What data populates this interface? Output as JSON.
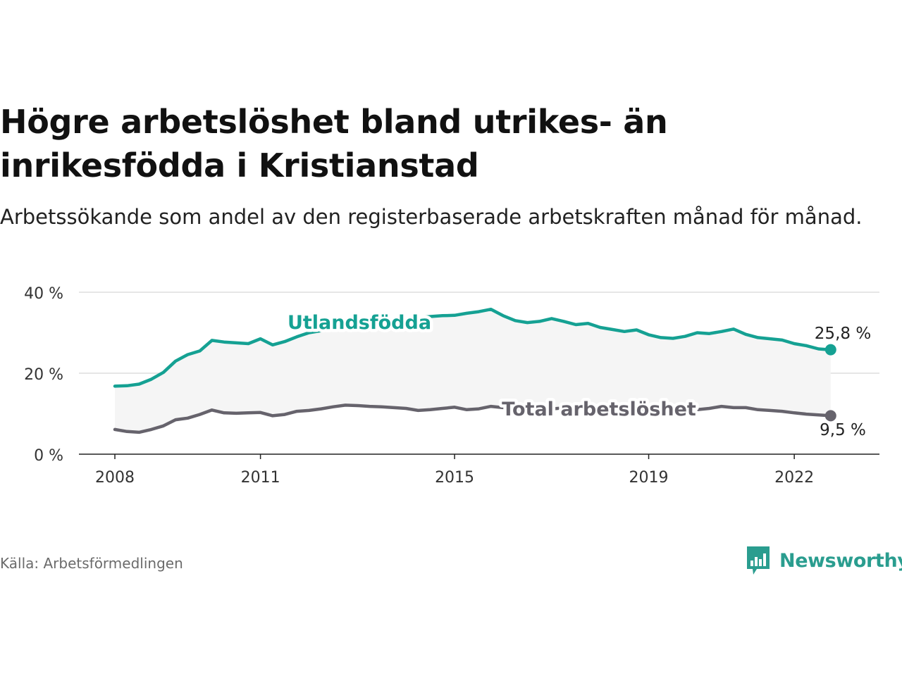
{
  "title": "Högre arbetslöshet bland utrikes- än inrikesfödda i Kristianstad",
  "subtitle": "Arbetssökande som andel av den registerbaserade arbetskraften månad för månad.",
  "source": "Källa: Arbetsförmedlingen",
  "brand": "Newsworthy",
  "colors": {
    "foreign": "#15a193",
    "total": "#66636c",
    "band": "#f5f5f5",
    "grid": "#dddddd",
    "brand": "#2a9d8f"
  },
  "chart_data": {
    "type": "line",
    "title": "Högre arbetslöshet bland utrikes- än inrikesfödda i Kristianstad",
    "xlabel": "",
    "ylabel": "",
    "xlim": [
      2008,
      2023.0
    ],
    "ylim": [
      0,
      40
    ],
    "grid": true,
    "y_ticks": [
      0,
      20,
      40
    ],
    "y_tick_labels": [
      "0 %",
      "20 %",
      "40 %"
    ],
    "x_ticks": [
      2008,
      2011,
      2015,
      2019,
      2022
    ],
    "x_tick_labels": [
      "2008",
      "2011",
      "2015",
      "2019",
      "2022"
    ],
    "x": [
      2008.0,
      2008.25,
      2008.5,
      2008.75,
      2009.0,
      2009.25,
      2009.5,
      2009.75,
      2010.0,
      2010.25,
      2010.5,
      2010.75,
      2011.0,
      2011.25,
      2011.5,
      2011.75,
      2012.0,
      2012.25,
      2012.5,
      2012.75,
      2013.0,
      2013.25,
      2013.5,
      2013.75,
      2014.0,
      2014.25,
      2014.5,
      2014.75,
      2015.0,
      2015.25,
      2015.5,
      2015.75,
      2016.0,
      2016.25,
      2016.5,
      2016.75,
      2017.0,
      2017.25,
      2017.5,
      2017.75,
      2018.0,
      2018.25,
      2018.5,
      2018.75,
      2019.0,
      2019.25,
      2019.5,
      2019.75,
      2020.0,
      2020.25,
      2020.5,
      2020.75,
      2021.0,
      2021.25,
      2021.5,
      2021.75,
      2022.0,
      2022.25,
      2022.5,
      2022.75
    ],
    "series": [
      {
        "name": "Utlandsfödda",
        "end_label": "25,8 %",
        "values": [
          16.8,
          16.9,
          17.3,
          18.5,
          20.2,
          23.0,
          24.6,
          25.5,
          28.1,
          27.7,
          27.5,
          27.3,
          28.5,
          27.0,
          27.8,
          29.0,
          30.0,
          30.5,
          31.0,
          31.5,
          32.0,
          32.5,
          33.0,
          33.3,
          33.5,
          33.7,
          34.0,
          34.2,
          34.3,
          34.8,
          35.2,
          35.8,
          34.2,
          33.0,
          32.5,
          32.8,
          33.5,
          32.8,
          32.0,
          32.3,
          31.3,
          30.8,
          30.3,
          30.7,
          29.5,
          28.8,
          28.6,
          29.1,
          30.0,
          29.8,
          30.3,
          30.9,
          29.6,
          28.8,
          28.5,
          28.2,
          27.3,
          26.8,
          26.0,
          25.8
        ]
      },
      {
        "name": "Total arbetslöshet",
        "end_label": "9,5 %",
        "values": [
          6.1,
          5.6,
          5.4,
          6.1,
          7.0,
          8.5,
          8.9,
          9.8,
          10.9,
          10.2,
          10.1,
          10.2,
          10.3,
          9.5,
          9.8,
          10.6,
          10.8,
          11.2,
          11.7,
          12.1,
          12.0,
          11.8,
          11.7,
          11.5,
          11.3,
          10.8,
          11.0,
          11.3,
          11.6,
          11.0,
          11.2,
          11.8,
          11.5,
          11.2,
          11.0,
          11.0,
          11.2,
          11.4,
          11.5,
          11.4,
          11.2,
          11.0,
          10.8,
          11.0,
          10.8,
          10.7,
          10.6,
          10.8,
          11.0,
          11.3,
          11.8,
          11.5,
          11.5,
          11.0,
          10.8,
          10.6,
          10.2,
          9.9,
          9.7,
          9.5
        ]
      }
    ]
  }
}
